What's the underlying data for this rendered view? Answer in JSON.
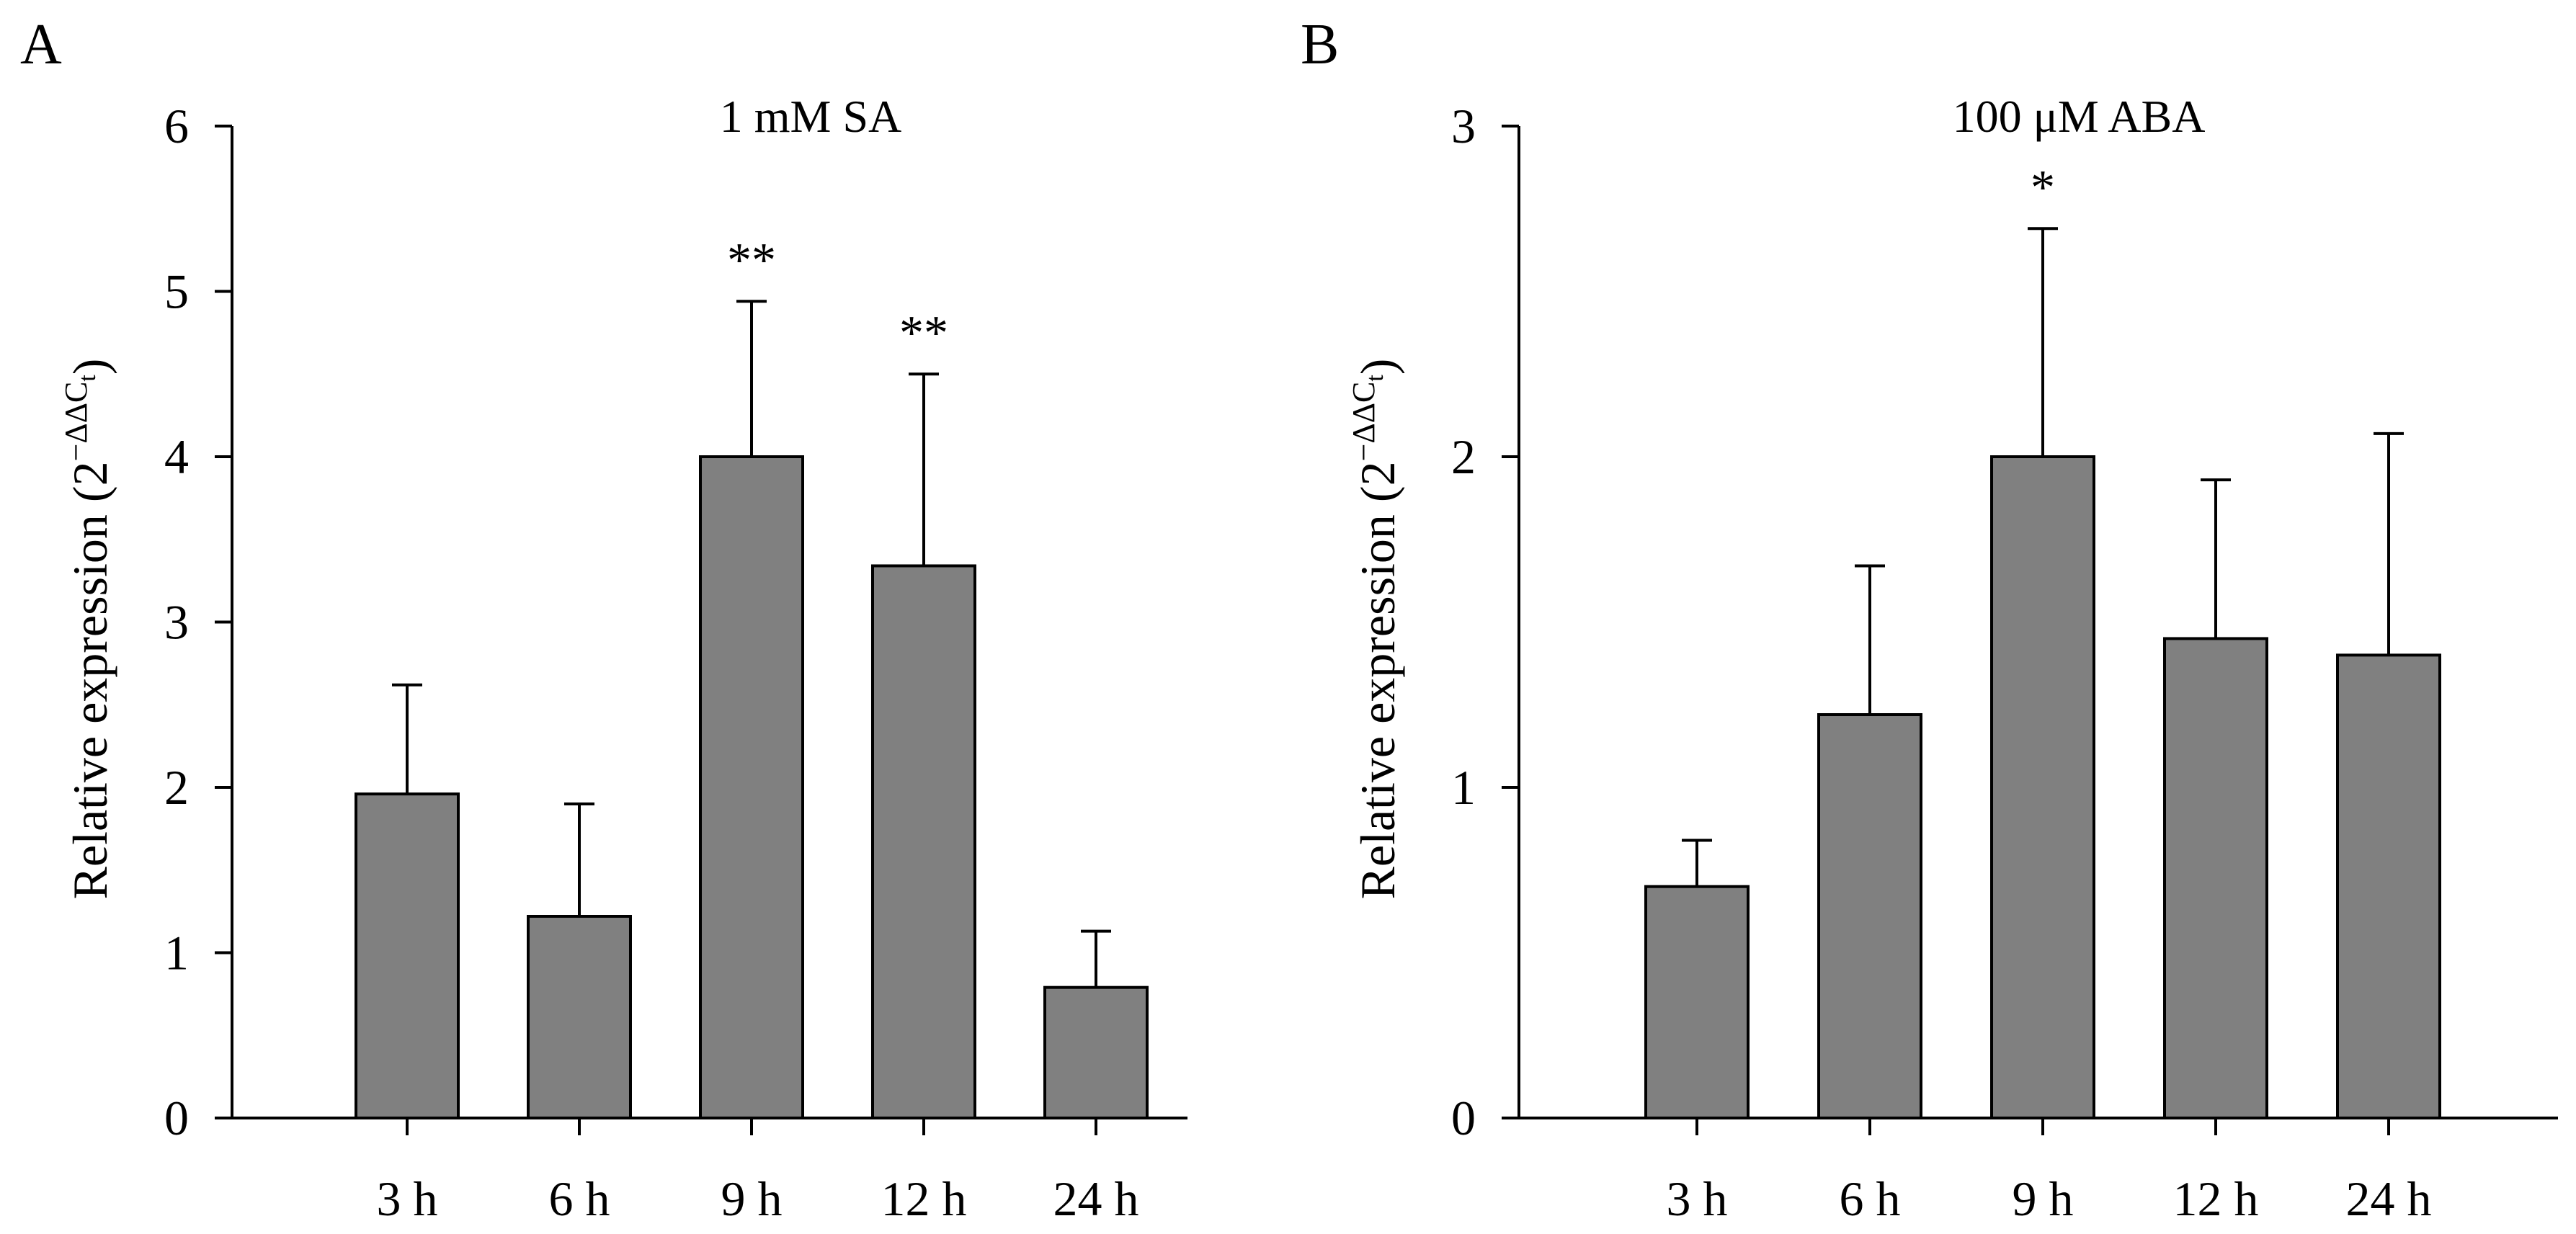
{
  "chart_data": [
    {
      "panel_label": "A",
      "type": "bar",
      "title": "1 mM SA",
      "ylabel_main": "Relative expression (2",
      "ylabel_superscript_main": "−ΔΔC",
      "ylabel_superscript_sub": "t",
      "ylabel_close": ")",
      "categories": [
        "3 h",
        "6 h",
        "9 h",
        "12 h",
        "24 h"
      ],
      "values": [
        1.96,
        1.22,
        4.0,
        3.34,
        0.79
      ],
      "error_upper": [
        0.66,
        0.68,
        0.94,
        1.16,
        0.34
      ],
      "significance": [
        "",
        "",
        "**",
        "**",
        ""
      ],
      "ylim": [
        0,
        6
      ],
      "yticks": [
        "0",
        "1",
        "2",
        "3",
        "4",
        "5",
        "6"
      ],
      "bar_color": "#808080"
    },
    {
      "panel_label": "B",
      "type": "bar",
      "title": "100 μM ABA",
      "ylabel_main": "Relative expression (2",
      "ylabel_superscript_main": "−ΔΔC",
      "ylabel_superscript_sub": "t",
      "ylabel_close": ")",
      "categories": [
        "3 h",
        "6 h",
        "9 h",
        "12 h",
        "24 h"
      ],
      "values": [
        0.7,
        1.22,
        2.0,
        1.45,
        1.4
      ],
      "error_upper": [
        0.14,
        0.45,
        0.69,
        0.48,
        0.67
      ],
      "significance": [
        "",
        "",
        "*",
        "",
        ""
      ],
      "ylim": [
        0,
        3
      ],
      "yticks": [
        "0",
        "1",
        "2",
        "3"
      ],
      "bar_color": "#808080"
    }
  ]
}
